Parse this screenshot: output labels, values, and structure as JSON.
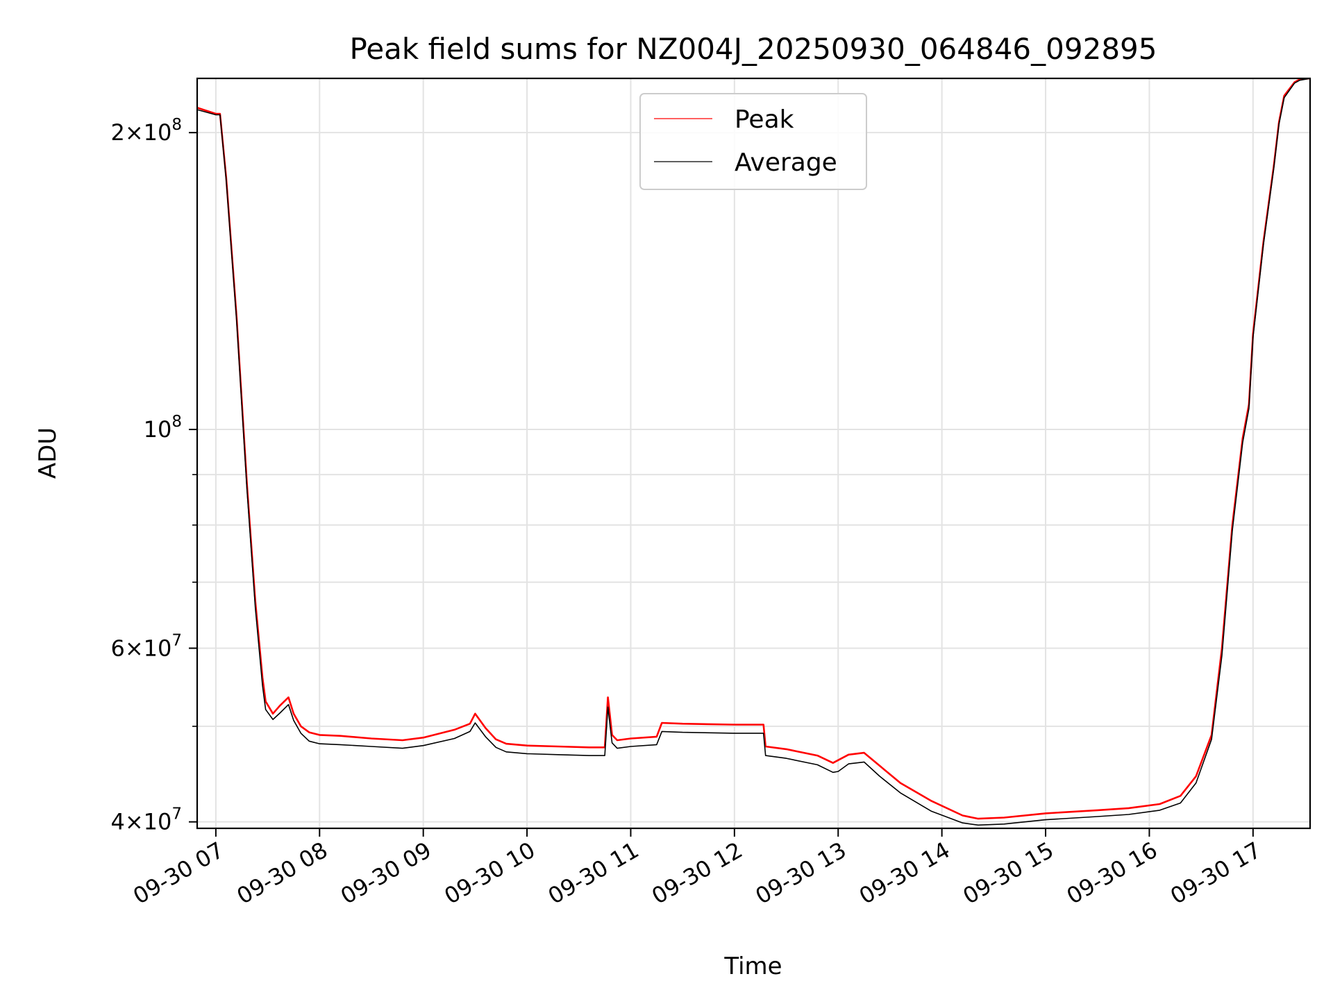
{
  "chart_data": {
    "type": "line",
    "title": "Peak field sums for NZ004J_20250930_064846_092895",
    "xlabel": "Time",
    "ylabel": "ADU",
    "yscale": "log",
    "xlim": [
      6.82,
      17.55
    ],
    "ylim": [
      39400000,
      227000000
    ],
    "x_unit": "hours on 2025-09-30",
    "x_ticks": [
      7,
      8,
      9,
      10,
      11,
      12,
      13,
      14,
      15,
      16,
      17
    ],
    "x_tick_labels": [
      "09-30 07",
      "09-30 08",
      "09-30 09",
      "09-30 10",
      "09-30 11",
      "09-30 12",
      "09-30 13",
      "09-30 14",
      "09-30 15",
      "09-30 16",
      "09-30 17"
    ],
    "y_major_ticks": [
      {
        "value": 40000000,
        "base": "4×10",
        "exp": "7"
      },
      {
        "value": 60000000,
        "base": "6×10",
        "exp": "7"
      },
      {
        "value": 100000000,
        "base": "10",
        "exp": "8"
      },
      {
        "value": 200000000,
        "base": "2×10",
        "exp": "8"
      }
    ],
    "y_minor_ticks": [
      50000000,
      70000000,
      80000000,
      90000000
    ],
    "grid": true,
    "legend_position": "top-center",
    "series": [
      {
        "name": "Peak",
        "color": "#ff0000",
        "x": [
          6.82,
          7.0,
          7.04,
          7.1,
          7.2,
          7.3,
          7.38,
          7.45,
          7.48,
          7.55,
          7.62,
          7.7,
          7.75,
          7.82,
          7.9,
          8.0,
          8.2,
          8.5,
          8.8,
          9.0,
          9.3,
          9.45,
          9.5,
          9.6,
          9.7,
          9.8,
          10.0,
          10.3,
          10.6,
          10.75,
          10.78,
          10.82,
          10.87,
          11.0,
          11.25,
          11.3,
          11.5,
          12.0,
          12.28,
          12.3,
          12.5,
          12.8,
          12.95,
          13.0,
          13.1,
          13.25,
          13.4,
          13.6,
          13.9,
          14.2,
          14.35,
          14.6,
          15.0,
          15.5,
          15.8,
          16.1,
          16.3,
          16.45,
          16.6,
          16.7,
          16.8,
          16.9,
          16.96,
          17.0,
          17.1,
          17.2,
          17.25,
          17.3,
          17.4,
          17.45,
          17.55
        ],
        "values": [
          212000000,
          209000000,
          209000000,
          180000000,
          130000000,
          88000000,
          67000000,
          56000000,
          53000000,
          51500000,
          52500000,
          53500000,
          51500000,
          50000000,
          49300000,
          49000000,
          48900000,
          48600000,
          48400000,
          48700000,
          49600000,
          50300000,
          51500000,
          49800000,
          48500000,
          48000000,
          47800000,
          47700000,
          47600000,
          47600000,
          53500000,
          49000000,
          48400000,
          48600000,
          48800000,
          50400000,
          50300000,
          50200000,
          50200000,
          47700000,
          47400000,
          46700000,
          45900000,
          46200000,
          46800000,
          47000000,
          45600000,
          43800000,
          42000000,
          40600000,
          40300000,
          40400000,
          40800000,
          41100000,
          41300000,
          41700000,
          42500000,
          44500000,
          49000000,
          60000000,
          80000000,
          98000000,
          106000000,
          125000000,
          155000000,
          185000000,
          205000000,
          218000000,
          225000000,
          226500000,
          227000000
        ]
      },
      {
        "name": "Average",
        "color": "#000000",
        "x": [
          6.82,
          7.0,
          7.04,
          7.1,
          7.2,
          7.3,
          7.38,
          7.45,
          7.48,
          7.55,
          7.62,
          7.7,
          7.75,
          7.82,
          7.9,
          8.0,
          8.2,
          8.5,
          8.8,
          9.0,
          9.3,
          9.45,
          9.5,
          9.6,
          9.7,
          9.8,
          10.0,
          10.3,
          10.6,
          10.75,
          10.78,
          10.82,
          10.87,
          11.0,
          11.25,
          11.3,
          11.5,
          12.0,
          12.28,
          12.3,
          12.5,
          12.8,
          12.95,
          13.0,
          13.1,
          13.25,
          13.4,
          13.6,
          13.9,
          14.2,
          14.35,
          14.6,
          15.0,
          15.5,
          15.8,
          16.1,
          16.3,
          16.45,
          16.6,
          16.7,
          16.8,
          16.9,
          16.96,
          17.0,
          17.1,
          17.2,
          17.25,
          17.3,
          17.4,
          17.45,
          17.55
        ],
        "values": [
          211000000,
          208500000,
          208500000,
          179000000,
          129000000,
          87000000,
          66000000,
          55000000,
          52000000,
          50800000,
          51600000,
          52600000,
          50700000,
          49200000,
          48300000,
          48000000,
          47900000,
          47700000,
          47500000,
          47800000,
          48600000,
          49400000,
          50400000,
          48800000,
          47600000,
          47100000,
          46900000,
          46800000,
          46700000,
          46700000,
          52300000,
          48100000,
          47500000,
          47700000,
          47900000,
          49400000,
          49300000,
          49200000,
          49200000,
          46700000,
          46400000,
          45700000,
          44900000,
          45000000,
          45800000,
          46000000,
          44500000,
          42800000,
          41000000,
          39900000,
          39700000,
          39800000,
          40200000,
          40500000,
          40700000,
          41100000,
          41800000,
          43800000,
          48500000,
          59000000,
          79000000,
          97000000,
          105000000,
          124000000,
          154000000,
          184000000,
          204000000,
          217000000,
          224500000,
          226000000,
          227000000
        ]
      }
    ]
  }
}
